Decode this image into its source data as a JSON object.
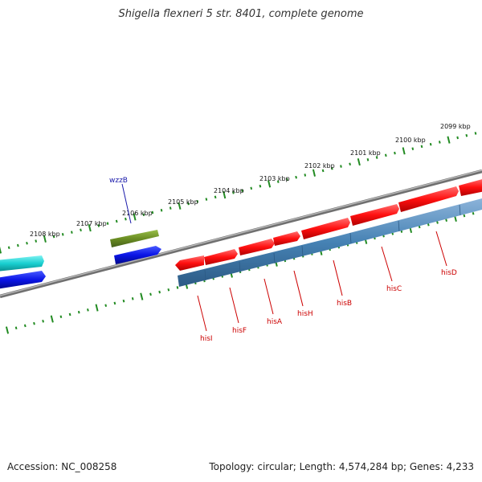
{
  "title": "Shigella flexneri 5 str. 8401, complete genome",
  "footer": {
    "accession": "Accession: NC_008258",
    "summary": "Topology: circular; Length: 4,574,284 bp; Genes: 4,233"
  },
  "scale_labels": [
    "2099 kbp",
    "2100 kbp",
    "2101 kbp",
    "2102 kbp",
    "2103 kbp",
    "2104 kbp",
    "2105 kbp",
    "2106 kbp",
    "2107 kbp",
    "2108 kbp"
  ],
  "gene_labels": {
    "wzzB": "wzzB",
    "hisI": "hisI",
    "hisF": "hisF",
    "hisA": "hisA",
    "hisH": "hisH",
    "hisB": "hisB",
    "hisC": "hisC",
    "hisD": "hisD"
  },
  "colors": {
    "backbone": "#808080",
    "ticks": "#228B22",
    "gene_red": "#ff1a1a",
    "gene_blue": "#0a14e6",
    "gene_cyan": "#19cfd0",
    "gene_olive": "#6b8e23",
    "steel_blue": "#4682b4"
  }
}
